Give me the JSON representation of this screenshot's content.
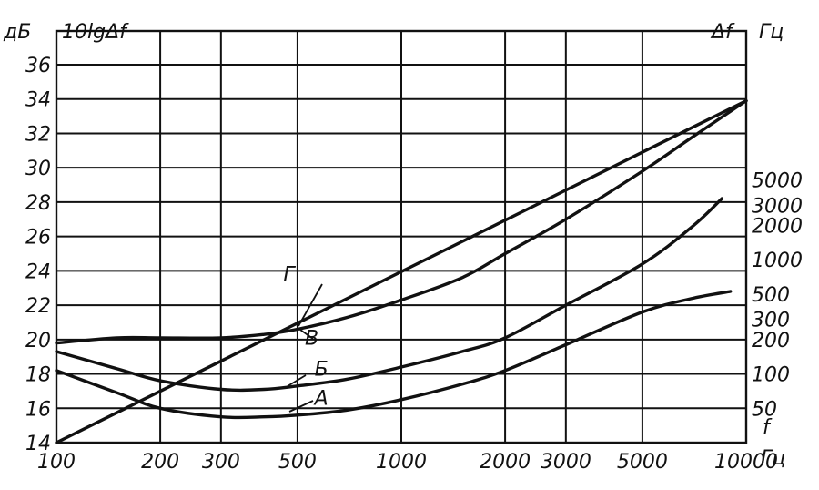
{
  "chart_data": {
    "type": "line",
    "x_scale": "log",
    "xlim": [
      100,
      10000
    ],
    "ylim": [
      14,
      37
    ],
    "grid": true,
    "left_axis": {
      "unit": "дБ",
      "title": "10lgΔf",
      "ticks": [
        14,
        16,
        18,
        20,
        22,
        24,
        26,
        28,
        30,
        32,
        34,
        36
      ]
    },
    "right_axis": {
      "title": "Δf",
      "unit": "Гц",
      "ticks": [
        "50",
        "100",
        "200",
        "300",
        "500",
        "1000",
        "2000",
        "3000",
        "5000"
      ],
      "tick_values": [
        50,
        100,
        200,
        300,
        500,
        1000,
        2000,
        3000,
        5000
      ]
    },
    "x_axis": {
      "title": "f",
      "unit": "Гц",
      "ticks": [
        "100",
        "200",
        "300",
        "500",
        "1000",
        "2000",
        "3000",
        "5000",
        "10000"
      ],
      "tick_values": [
        100,
        200,
        300,
        500,
        1000,
        2000,
        3000,
        5000,
        10000
      ]
    },
    "series": [
      {
        "name": "Г",
        "label_at": [
          455,
          23.4
        ],
        "points": [
          [
            100,
            14.0
          ],
          [
            10000,
            33.9
          ]
        ]
      },
      {
        "name": "В",
        "label_at": [
          525,
          19.7
        ],
        "points": [
          [
            100,
            19.8
          ],
          [
            150,
            20.1
          ],
          [
            200,
            20.1
          ],
          [
            300,
            20.1
          ],
          [
            400,
            20.3
          ],
          [
            500,
            20.6
          ],
          [
            700,
            21.3
          ],
          [
            1000,
            22.3
          ],
          [
            1500,
            23.6
          ],
          [
            2000,
            25.0
          ],
          [
            3000,
            27.0
          ],
          [
            5000,
            29.8
          ],
          [
            7000,
            31.8
          ],
          [
            10000,
            33.9
          ]
        ]
      },
      {
        "name": "Б",
        "label_at": [
          560,
          17.9
        ],
        "points": [
          [
            100,
            19.3
          ],
          [
            150,
            18.3
          ],
          [
            200,
            17.6
          ],
          [
            300,
            17.1
          ],
          [
            400,
            17.1
          ],
          [
            500,
            17.3
          ],
          [
            700,
            17.7
          ],
          [
            1000,
            18.4
          ],
          [
            1500,
            19.3
          ],
          [
            2000,
            20.1
          ],
          [
            3000,
            22.0
          ],
          [
            5000,
            24.4
          ],
          [
            7000,
            26.6
          ],
          [
            8500,
            28.2
          ]
        ]
      },
      {
        "name": "А",
        "label_at": [
          560,
          16.2
        ],
        "points": [
          [
            100,
            18.2
          ],
          [
            150,
            16.9
          ],
          [
            200,
            16.0
          ],
          [
            300,
            15.5
          ],
          [
            400,
            15.5
          ],
          [
            500,
            15.6
          ],
          [
            700,
            15.9
          ],
          [
            1000,
            16.5
          ],
          [
            1500,
            17.4
          ],
          [
            2000,
            18.2
          ],
          [
            3000,
            19.7
          ],
          [
            5000,
            21.6
          ],
          [
            7000,
            22.4
          ],
          [
            9000,
            22.8
          ]
        ]
      }
    ]
  }
}
